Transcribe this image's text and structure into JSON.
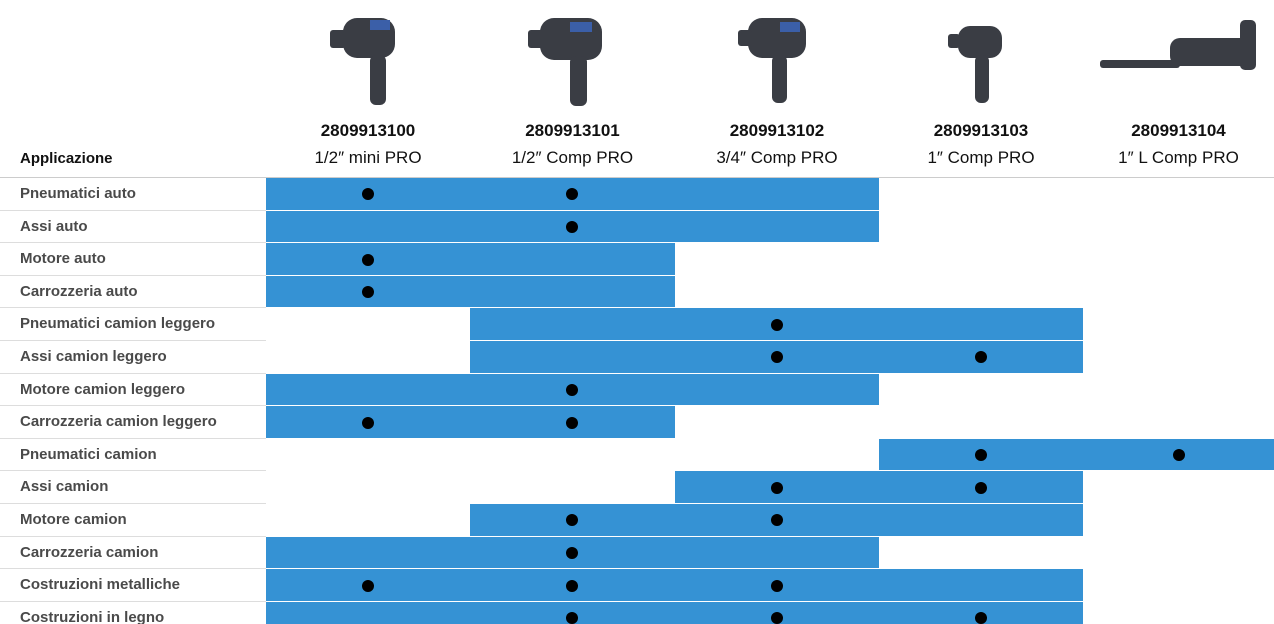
{
  "header": {
    "label_column": "Applicazione",
    "products": [
      {
        "code": "2809913100",
        "name": "1/2″ mini PRO"
      },
      {
        "code": "2809913101",
        "name": "1/2″ Comp PRO"
      },
      {
        "code": "2809913102",
        "name": "3/4″ Comp PRO"
      },
      {
        "code": "2809913103",
        "name": "1″ Comp PRO"
      },
      {
        "code": "2809913104",
        "name": "1″ L Comp PRO"
      }
    ]
  },
  "table": {
    "rows": [
      {
        "label": "Pneumatici auto",
        "suitable": [
          true,
          true,
          true,
          false,
          false
        ],
        "recommended": [
          true,
          true,
          false,
          false,
          false
        ]
      },
      {
        "label": "Assi auto",
        "suitable": [
          true,
          true,
          true,
          false,
          false
        ],
        "recommended": [
          false,
          true,
          false,
          false,
          false
        ]
      },
      {
        "label": "Motore auto",
        "suitable": [
          true,
          true,
          false,
          false,
          false
        ],
        "recommended": [
          true,
          false,
          false,
          false,
          false
        ]
      },
      {
        "label": "Carrozzeria auto",
        "suitable": [
          true,
          true,
          false,
          false,
          false
        ],
        "recommended": [
          true,
          false,
          false,
          false,
          false
        ]
      },
      {
        "label": "Pneumatici camion leggero",
        "suitable": [
          false,
          true,
          true,
          true,
          false
        ],
        "recommended": [
          false,
          false,
          true,
          false,
          false
        ]
      },
      {
        "label": "Assi camion leggero",
        "suitable": [
          false,
          true,
          true,
          true,
          false
        ],
        "recommended": [
          false,
          false,
          true,
          true,
          false
        ]
      },
      {
        "label": "Motore camion leggero",
        "suitable": [
          true,
          true,
          true,
          false,
          false
        ],
        "recommended": [
          false,
          true,
          false,
          false,
          false
        ]
      },
      {
        "label": "Carrozzeria camion leggero",
        "suitable": [
          true,
          true,
          false,
          false,
          false
        ],
        "recommended": [
          true,
          true,
          false,
          false,
          false
        ]
      },
      {
        "label": "Pneumatici camion",
        "suitable": [
          false,
          false,
          false,
          true,
          true
        ],
        "recommended": [
          false,
          false,
          false,
          true,
          true
        ]
      },
      {
        "label": "Assi camion",
        "suitable": [
          false,
          false,
          true,
          true,
          false
        ],
        "recommended": [
          false,
          false,
          true,
          true,
          false
        ]
      },
      {
        "label": "Motore camion",
        "suitable": [
          false,
          true,
          true,
          true,
          false
        ],
        "recommended": [
          false,
          true,
          true,
          false,
          false
        ]
      },
      {
        "label": "Carrozzeria camion",
        "suitable": [
          true,
          true,
          true,
          false,
          false
        ],
        "recommended": [
          false,
          true,
          false,
          false,
          false
        ]
      },
      {
        "label": "Costruzioni metalliche",
        "suitable": [
          true,
          true,
          true,
          true,
          false
        ],
        "recommended": [
          true,
          true,
          true,
          false,
          false
        ]
      },
      {
        "label": "Costruzioni in legno",
        "suitable": [
          true,
          true,
          true,
          true,
          false
        ],
        "recommended": [
          false,
          true,
          true,
          true,
          false
        ]
      }
    ],
    "color": "#3592d4"
  }
}
